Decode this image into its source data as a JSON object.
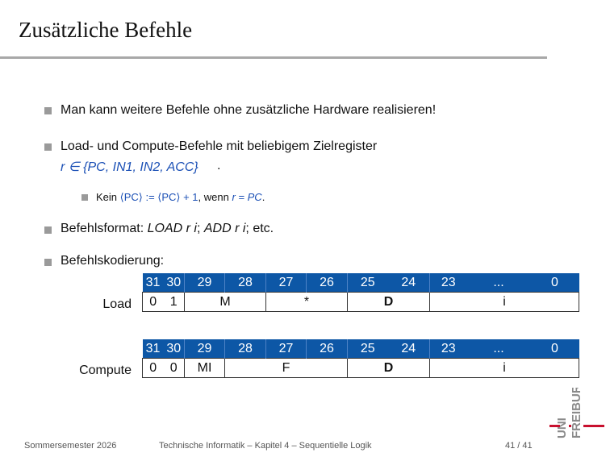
{
  "slide": {
    "title": "Zusätzliche Befehle"
  },
  "bullets": {
    "b1": "Man kann weitere Befehle ohne zusätzliche Hardware realisieren!",
    "b2_line1": "Load- und Compute-Befehle mit beliebigem Zielregister",
    "b2_line2": "r ∈ {PC, IN1, IN2, ACC}",
    "b2_sub_pre": "Kein",
    "b2_sub_expr": "⟨PC⟩ := ⟨PC⟩ + 1",
    "b2_sub_mid": ", wenn",
    "b2_sub_cond": "r = PC",
    "b3_pre": "Befehlsformat:",
    "b3_load": "LOAD r i",
    "b3_sep": ";",
    "b3_add": "ADD r i",
    "b3_post": "; etc.",
    "b4": "Befehlskodierung:"
  },
  "encoding": {
    "bit_headers": [
      "31",
      "30",
      "29",
      "28",
      "27",
      "26",
      "25",
      "24",
      "23",
      "...",
      "0"
    ],
    "load": {
      "label": "Load",
      "fields": [
        "0",
        "1",
        "M",
        "*",
        "D",
        "i"
      ]
    },
    "compute": {
      "label": "Compute",
      "fields": [
        "0",
        "0",
        "MI",
        "F",
        "D",
        "i"
      ]
    }
  },
  "footer": {
    "semester": "Sommersemester 2026",
    "course": "Technische Informatik –  Kapitel 4 – Sequentielle Logik",
    "page": "41 / 41"
  },
  "logo": {
    "line1": "UNI",
    "line2": "FREIBURG"
  },
  "colors": {
    "table_header": "#0d57a6",
    "accent_blue": "#1a4fb5",
    "logo_red": "#c8102e"
  }
}
